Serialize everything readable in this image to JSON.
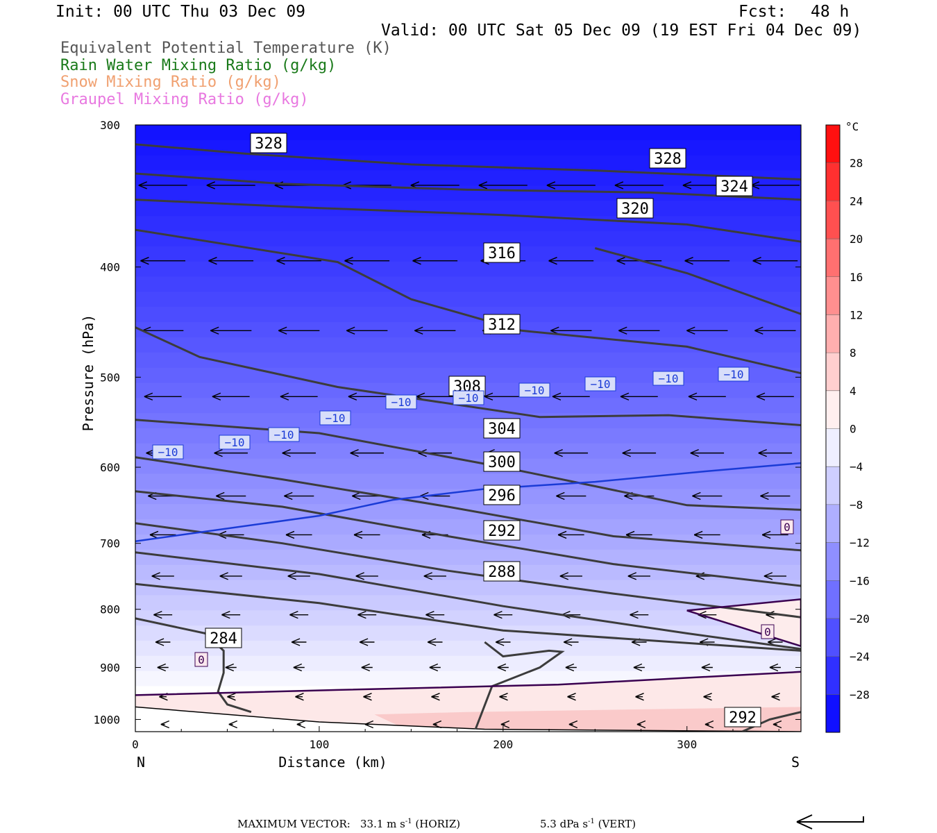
{
  "header": {
    "init": "Init: 00 UTC Thu 03 Dec 09",
    "fcst_label": "Fcst:",
    "fcst_value": "48 h",
    "valid": "Valid: 00 UTC Sat 05 Dec 09 (19 EST Fri 04 Dec 09)"
  },
  "legend": [
    {
      "label": "Equivalent Potential Temperature (K)",
      "color": "#555555"
    },
    {
      "label": "Rain Water Mixing Ratio (g/kg)",
      "color": "#1a7a1a"
    },
    {
      "label": "Snow Mixing Ratio (g/kg)",
      "color": "#f0a070"
    },
    {
      "label": "Graupel Mixing Ratio (g/kg)",
      "color": "#e878e0"
    }
  ],
  "footer": {
    "max_vector_label": "MAXIMUM VECTOR:",
    "horiz_value": "33.1 m s",
    "horiz_exp": "-1",
    "horiz_tag": "(HORIZ)",
    "vert_value": "5.3 dPa s",
    "vert_exp": "-1",
    "vert_tag": "(VERT)"
  },
  "chart_data": {
    "type": "cross-section contour",
    "xlabel": "Distance (km)",
    "ylabel": "Pressure (hPa)",
    "xlim": [
      0,
      362
    ],
    "ylim": [
      300,
      1025
    ],
    "y_log": true,
    "x_ticks": [
      0,
      100,
      200,
      300
    ],
    "y_ticks": [
      300,
      400,
      500,
      600,
      700,
      800,
      900,
      1000
    ],
    "end_labels": {
      "left": "N",
      "right": "S"
    },
    "colorbar": {
      "unit": "°C",
      "ticks": [
        "28",
        "24",
        "20",
        "16",
        "12",
        "8",
        "4",
        "0",
        "−4",
        "−8",
        "−12",
        "−16",
        "−20",
        "−24",
        "−28"
      ],
      "range": [
        -32,
        32
      ],
      "cold_color": "#0000ff",
      "warm_color": "#ff0000"
    },
    "theta_e_contours": [
      {
        "level": 328,
        "label": "328",
        "points": [
          [
            0,
            312
          ],
          [
            60,
            318
          ],
          [
            150,
            325
          ],
          [
            250,
            329
          ],
          [
            362,
            335
          ]
        ]
      },
      {
        "level": 328,
        "label": "328",
        "points": [
          [
            0,
            331
          ],
          [
            80,
            338
          ],
          [
            180,
            342
          ],
          [
            280,
            344
          ],
          [
            362,
            349
          ]
        ]
      },
      {
        "level": 324,
        "label": "324",
        "points": [
          [
            0,
            349
          ],
          [
            100,
            355
          ],
          [
            200,
            360
          ],
          [
            300,
            367
          ],
          [
            362,
            380
          ]
        ]
      },
      {
        "level": 320,
        "label": "320",
        "points": [
          [
            0,
            371
          ],
          [
            110,
            396
          ],
          [
            150,
            427
          ],
          [
            210,
            455
          ],
          [
            300,
            470
          ],
          [
            362,
            496
          ]
        ]
      },
      {
        "level": 316,
        "label": "316",
        "points": [
          [
            0,
            452
          ],
          [
            35,
            480
          ],
          [
            110,
            510
          ],
          [
            220,
            542
          ],
          [
            290,
            540
          ],
          [
            362,
            551
          ]
        ]
      },
      {
        "level": 316,
        "label": "",
        "points": [
          [
            250,
            385
          ],
          [
            300,
            405
          ],
          [
            362,
            440
          ]
        ]
      },
      {
        "level": 312,
        "label": "312",
        "points": [
          [
            0,
            545
          ],
          [
            100,
            560
          ],
          [
            200,
            600
          ],
          [
            300,
            648
          ],
          [
            362,
            654
          ]
        ]
      },
      {
        "level": 308,
        "label": "308",
        "points": [
          [
            0,
            588
          ],
          [
            80,
            615
          ],
          [
            170,
            650
          ],
          [
            260,
            690
          ],
          [
            362,
            710
          ]
        ]
      },
      {
        "level": 304,
        "label": "304",
        "points": [
          [
            0,
            630
          ],
          [
            80,
            650
          ],
          [
            170,
            690
          ],
          [
            260,
            730
          ],
          [
            362,
            763
          ]
        ]
      },
      {
        "level": 300,
        "label": "300",
        "points": [
          [
            0,
            672
          ],
          [
            80,
            700
          ],
          [
            170,
            740
          ],
          [
            260,
            775
          ],
          [
            362,
            813
          ]
        ]
      },
      {
        "level": 296,
        "label": "296",
        "points": [
          [
            0,
            713
          ],
          [
            100,
            745
          ],
          [
            200,
            795
          ],
          [
            300,
            840
          ],
          [
            362,
            867
          ]
        ]
      },
      {
        "level": 292,
        "label": "292",
        "points": [
          [
            0,
            760
          ],
          [
            100,
            790
          ],
          [
            200,
            835
          ],
          [
            362,
            870
          ]
        ]
      },
      {
        "level": 288,
        "label": "288",
        "points": [
          [
            190,
            855
          ],
          [
            200,
            880
          ],
          [
            225,
            870
          ],
          [
            232,
            872
          ],
          [
            220,
            900
          ],
          [
            194,
            935
          ],
          [
            185,
            1020
          ]
        ]
      },
      {
        "level": 284,
        "label": "284",
        "points": [
          [
            0,
            815
          ],
          [
            38,
            840
          ],
          [
            48,
            870
          ],
          [
            48,
            910
          ],
          [
            45,
            945
          ],
          [
            50,
            970
          ],
          [
            63,
            985
          ]
        ]
      },
      {
        "level": 292,
        "label": "292",
        "points": [
          [
            330,
            1025
          ],
          [
            345,
            1000
          ],
          [
            362,
            985
          ]
        ]
      }
    ],
    "temperature_contours": [
      {
        "level": -10,
        "label": "−10",
        "color": "#1a3bd6",
        "points": [
          [
            0,
            697
          ],
          [
            100,
            662
          ],
          [
            140,
            641
          ],
          [
            190,
            627
          ],
          [
            250,
            618
          ],
          [
            310,
            605
          ],
          [
            362,
            595
          ]
        ]
      },
      {
        "level": 0,
        "label": "0",
        "color": "#3a0050",
        "points": [
          [
            0,
            952
          ],
          [
            110,
            942
          ],
          [
            230,
            932
          ],
          [
            362,
            908
          ]
        ]
      },
      {
        "level": 0,
        "label": "0",
        "color": "#3a0050",
        "points": [
          [
            362,
            784
          ],
          [
            300,
            802
          ],
          [
            362,
            862
          ]
        ]
      }
    ],
    "wind_arrow_rows_hpa": [
      339,
      395,
      455,
      520,
      583,
      636,
      688,
      748,
      809,
      855,
      900,
      955,
      1010
    ]
  }
}
